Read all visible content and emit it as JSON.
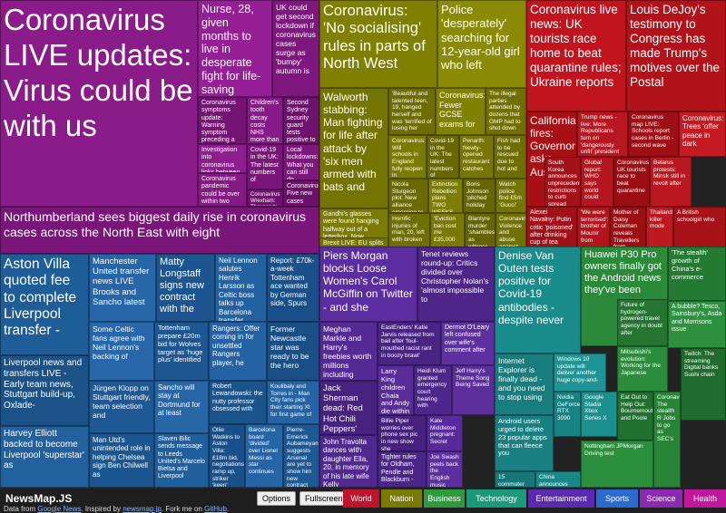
{
  "tiles": [
    {
      "text": "Coronavirus LIVE updates: Virus could be with us",
      "color": "#8a1c8a"
    },
    {
      "text": "Northumberland sees biggest daily rise in coronavirus cases across the North East with eight",
      "color": "#7a157a"
    },
    {
      "text": "Nurse, 28, given months to live in desperate fight for life-saving",
      "color": "#951f95"
    },
    {
      "text": "UK could get second lockdown if coronavirus cases surge as 'bumpy' autumn is",
      "color": "#7e187e"
    },
    {
      "text": "Coronavirus symptoms update: Warning symptom preceding a fever",
      "color": "#731473"
    },
    {
      "text": "Children's tooth decay costs NHS more than £40m a year",
      "color": "#861a86"
    },
    {
      "text": "Second Sydney security guard tests positive to",
      "color": "#6d126d"
    },
    {
      "text": "Investigation into coronavirus links between Coupar Angus factory",
      "color": "#8e1d8e"
    },
    {
      "text": "Covid-19 in the UK: The latest numbers of",
      "color": "#7a167a"
    },
    {
      "text": "Coronavirus pandemic could be over within two years - WHO",
      "color": "#831983"
    },
    {
      "text": "Coronavirus Wrexham: Thousands of customers told",
      "color": "#701370"
    },
    {
      "text": "Local lockdowns: What you can still do",
      "color": "#7d177d"
    },
    {
      "text": "Coronavirus: Five new cases",
      "color": "#6a116a"
    },
    {
      "text": "Coronavirus: 'No socialising' rules in parts of North West",
      "color": "#7f7f00"
    },
    {
      "text": "Police 'desperately' searching for 12-year-old girl who left",
      "color": "#8a8a06"
    },
    {
      "text": "Walworth stabbing: Man fighting for life after attack by 'six men armed with bats and",
      "color": "#747400"
    },
    {
      "text": "'Beautiful and talented teen, 19, hanged herself and was 'terrified of losing her",
      "color": "#6c6c00"
    },
    {
      "text": "Coronavirus: Fewer GCSE exams for",
      "color": "#818100"
    },
    {
      "text": "The illegal parties attended by dozens that GMP had to shut down",
      "color": "#707000"
    },
    {
      "text": "Coronavirus: Will schools in England fully reopen in September for",
      "color": "#7a7a00"
    },
    {
      "text": "Covid-19 in the UK: The latest numbers of",
      "color": "#686800"
    },
    {
      "text": "Penarth: Newly-opened restaurant catches",
      "color": "#767600"
    },
    {
      "text": "Fish had to be rescued due to hot and",
      "color": "#6e6e00"
    },
    {
      "text": "Gandhi's glasses were found hanging halfway out of a letterbox. Now, they're expected",
      "color": "#7b7b00"
    },
    {
      "text": "Brexit LIVE: EU splits laid bare in trade talks as no deal becomes more likely",
      "color": "#727200"
    },
    {
      "text": "Nicola Sturgeon plot: New alliance emerging to",
      "color": "#6a6a00"
    },
    {
      "text": "Extinction Rebellion plans TWO WEEKS of",
      "color": "#7d7d00"
    },
    {
      "text": "Boris Johnson 'pitched holiday",
      "color": "#666600"
    },
    {
      "text": "Watch police find £5m 'Gucci'",
      "color": "#747400"
    },
    {
      "text": "Horrific injuries of man, 20, left with broken",
      "color": "#6f6f00"
    },
    {
      "text": "'Eviction ban cost me £35,000",
      "color": "#797900"
    },
    {
      "text": "Blantyre murder 'shambles' as witness",
      "color": "#656500"
    },
    {
      "text": "Coronavirus: Violence and abuse against",
      "color": "#717100"
    },
    {
      "text": "Coronavirus live news: UK tourists race home to beat quarantine rules; Ukraine reports",
      "color": "#c0141e"
    },
    {
      "text": "Louis DeJoy's testimony to Congress has made Trump's motives over the Postal",
      "color": "#b21219"
    },
    {
      "text": "California fires: Governor asks Australia",
      "color": "#a81016"
    },
    {
      "text": "Trump news - live: More Republicans turn on 'dangerously unfit' president as White",
      "color": "#b81620"
    },
    {
      "text": "Coronavirus map LIVE: Schools report cases in Berlin - second wave",
      "color": "#9e0f15"
    },
    {
      "text": "Coronavirus: Trees 'offer peace in dark",
      "color": "#c41a22"
    },
    {
      "text": "South Korea announces unprecedented restrictions to curb spread",
      "color": "#a51118"
    },
    {
      "text": "Global report: WHO says world could",
      "color": "#b5151e"
    },
    {
      "text": "Coronavirus: UK tourists race to beat quarantine",
      "color": "#9a0e14"
    },
    {
      "text": "Belarus protests: Minsk still in revolt after",
      "color": "#ba1720"
    },
    {
      "text": "Alexei Navalny: Putin critic 'poisoned' after drinking cup of tea",
      "color": "#a21017"
    },
    {
      "text": "'We were terrorised': brother of Mounir from",
      "color": "#b3141c"
    },
    {
      "text": "Mother of Daisy Coleman reveals Travellers from France",
      "color": "#9c0f15"
    },
    {
      "text": "Thailand: killer mode",
      "color": "#be1921"
    },
    {
      "text": "A British schoolgirl who",
      "color": "#a71219"
    },
    {
      "text": "Aston Villa quoted fee to complete Liverpool transfer -",
      "color": "#1f5d99"
    },
    {
      "text": "Manchester United transfer news LIVE Brooks and Sancho latest",
      "color": "#2666a8"
    },
    {
      "text": "Matty Longstaff signs new contract with the",
      "color": "#1c5590"
    },
    {
      "text": "Neil Lennon salutes Henrik Larsson as Celtic boss talks up Barcelona transfer",
      "color": "#2361a0"
    },
    {
      "text": "Report: £70k-a-week Tottenham ace wanted by German side, Spurs",
      "color": "#1a5089"
    },
    {
      "text": "Liverpool news and transfers LIVE - Early team news, Stuttgart build-up, Oxlade-",
      "color": "#1b5288"
    },
    {
      "text": "Some Celtic fans agree with Neil Lennon's backing of",
      "color": "#2868aa"
    },
    {
      "text": "Tottenham prepare £20m bid for Wolves target as 'huge plus' identified",
      "color": "#1d5792"
    },
    {
      "text": "Rangers: Offer coming in for unsettled Rangers player, he",
      "color": "#2462a3"
    },
    {
      "text": "Former Newcastle star was ready to be the hero",
      "color": "#1a4f86"
    },
    {
      "text": "Harvey Elliott backed to become Liverpool 'superstar' as",
      "color": "#22609e"
    },
    {
      "text": "Jürgen Klopp on Stuttgart friendly, team selection and",
      "color": "#1e5995"
    },
    {
      "text": "Sancho will stay at Dortmund for at least",
      "color": "#2766a7"
    },
    {
      "text": "Robert Lewandowski: the nutty professor obsessed with",
      "color": "#1b538b"
    },
    {
      "text": "Koulibaly and Torres in - Man City fans pick their starting XI for first game of",
      "color": "#2463a4"
    },
    {
      "text": "Man Utd's unintended role in helping Chelsea sign Ben Chilwell as",
      "color": "#1c5690"
    },
    {
      "text": "Slaven Bilic sends message to Leeds United's Marcelo Bielsa and Liverpool",
      "color": "#215e9c"
    },
    {
      "text": "Ollie Watkins to Aston Villa: £18m bid, negotiations ramp up, striker 'keen'",
      "color": "#1a5089"
    },
    {
      "text": "Barcelona board 'divided' over Lionel Messi as star continues",
      "color": "#2564a5"
    },
    {
      "text": "Pierre-Emerick Aubameyang suggests Arsenal are yet to show him new contract",
      "color": "#1d5893"
    },
    {
      "text": "Piers Morgan blocks Loose Women's Carol McGiffin on Twitter - and she",
      "color": "#5b2d9e"
    },
    {
      "text": "Tenet reviews round-up: Critics divided over Christopher Nolan's 'almost impossible to",
      "color": "#4e268a"
    },
    {
      "text": "Meghan Markle and Harry's freebies worth millions including",
      "color": "#552a94"
    },
    {
      "text": "EastEnders' Katie Jarvis released from bail after 'foul-mouthed racist rant in boozy brawl'",
      "color": "#4a2485"
    },
    {
      "text": "Dermot O'Leary left confused over wife's comment after",
      "color": "#5f309f"
    },
    {
      "text": "Jack Sherman dead: Red Hot Chili Peppers' guitarist dies aged 64",
      "color": "#48227f"
    },
    {
      "text": "Larry King children Chaia and Andy die within weeks",
      "color": "#5a2c9a"
    },
    {
      "text": "Heidi Klum granted emergency court hearing with",
      "color": "#4f278b"
    },
    {
      "text": "Jeff Harry's Theme Song Being Saved",
      "color": "#5c2e9c"
    },
    {
      "text": "Billie Piper worries over phone sex pic in new show she",
      "color": "#462180"
    },
    {
      "text": "Kate Middleton pregnant: Secret",
      "color": "#58299a"
    },
    {
      "text": "John Travolta dances with daughter Ella, 20, in memory of his late wife Kelly",
      "color": "#512890"
    },
    {
      "text": "Tighter rules for Oldham, Pendle and Blackburn -",
      "color": "#4b2587"
    },
    {
      "text": "Joe Swash peels back the English music",
      "color": "#5d2f9e"
    },
    {
      "text": "Denise Van Outen tests positive for Covid-19 antibodies - despite never",
      "color": "#1b8c8c"
    },
    {
      "text": "Internet Explorer is finally dead - and you need to stop using",
      "color": "#177d7d"
    },
    {
      "text": "Windows 10 update will deliver another huge copy-and-",
      "color": "#1e9494"
    },
    {
      "text": "Android users urged to delete 23 popular apps that can fleece you",
      "color": "#197f80"
    },
    {
      "text": "Nvidia GeForce RTX 3090",
      "color": "#168282"
    },
    {
      "text": "Google Stadia Xbox Series X",
      "color": "#1c8f8f"
    },
    {
      "text": "15 commuter towns Londoners are moving to",
      "color": "#157777"
    },
    {
      "text": "China announces plans for Asteroid",
      "color": "#1a8888"
    },
    {
      "text": "Huawei P30 Pro owners finally got the Android news they've been",
      "color": "#2a8a3a"
    },
    {
      "text": "'The stealth' growth of China's e-commerce",
      "color": "#247a32"
    },
    {
      "text": "A bubble? Tesco, Sainsbury's, Asda and Morrisons issue",
      "color": "#2d9140"
    },
    {
      "text": "Future of hydrogen-powered travel agency in doubt after",
      "color": "#237531"
    },
    {
      "text": "Mitsubishi's evolution: Working for the Japanese",
      "color": "#2b8c3c"
    },
    {
      "text": "Eat Out to Help Out: Bournemouth and Poole",
      "color": "#207030"
    },
    {
      "text": "Coronavirus: The stealth R Jobs to go as SEC's",
      "color": "#288537"
    },
    {
      "text": "Twitch: The streaming Digital banks Sushi chain",
      "color": "#1f6c2e"
    },
    {
      "text": "Nottingham JPMorgan Driving test",
      "color": "#2c8f3e"
    }
  ],
  "bar": {
    "brand": "NewsMap.JS",
    "buttons": [
      "Options",
      "Fullscreen"
    ],
    "categories": [
      {
        "name": "World",
        "color": "#c0142e"
      },
      {
        "name": "Nation",
        "color": "#7a7a00"
      },
      {
        "name": "Business",
        "color": "#2e9a3c"
      },
      {
        "name": "Technology",
        "color": "#1a9a7a"
      },
      {
        "name": "Entertainment",
        "color": "#5a2ab0"
      },
      {
        "name": "Sports",
        "color": "#2a6bd0"
      },
      {
        "name": "Science",
        "color": "#8a2ab0"
      },
      {
        "name": "Health",
        "color": "#c0189a"
      }
    ],
    "footer": [
      "Data from ",
      "Google News",
      ". Inspired by ",
      "newsmap.jp",
      ". Fork me on ",
      "GitHub",
      "."
    ]
  }
}
